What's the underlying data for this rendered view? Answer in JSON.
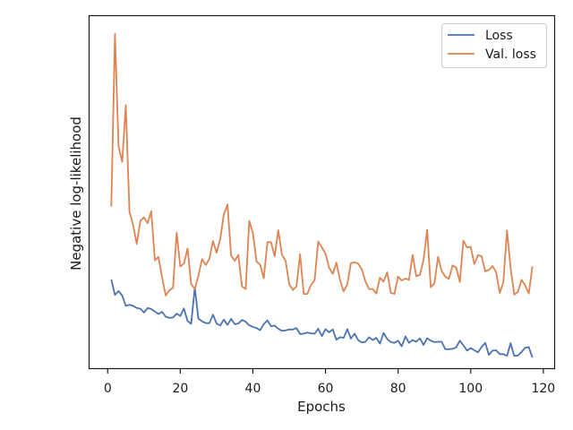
{
  "chart_data": {
    "type": "line",
    "title": "",
    "xlabel": "Epochs",
    "ylabel": "Negative log-likelihood",
    "xlim": [
      -5,
      123
    ],
    "ylim": [
      0.0,
      1.0
    ],
    "x_ticks": [
      0,
      20,
      40,
      60,
      80,
      100,
      120
    ],
    "x_tick_labels": [
      "0",
      "20",
      "40",
      "60",
      "80",
      "100",
      "120"
    ],
    "y_ticks_shown": false,
    "grid": false,
    "legend": "top-right",
    "series": [
      {
        "name": "Loss",
        "color": "#4c72b0",
        "x": [
          1,
          2,
          3,
          4,
          5,
          6,
          7,
          8,
          9,
          10,
          11,
          12,
          13,
          14,
          15,
          16,
          17,
          18,
          19,
          20,
          21,
          22,
          23,
          24,
          25,
          26,
          27,
          28,
          29,
          30,
          31,
          32,
          33,
          34,
          35,
          36,
          37,
          38,
          39,
          40,
          41,
          42,
          43,
          44,
          45,
          46,
          47,
          48,
          49,
          50,
          51,
          52,
          53,
          54,
          55,
          56,
          57,
          58,
          59,
          60,
          61,
          62,
          63,
          64,
          65,
          66,
          67,
          68,
          69,
          70,
          71,
          72,
          73,
          74,
          75,
          76,
          77,
          78,
          79,
          80,
          81,
          82,
          83,
          84,
          85,
          86,
          87,
          88,
          89,
          90,
          91,
          92,
          93,
          94,
          95,
          96,
          97,
          98,
          99,
          100,
          101,
          102,
          103,
          104,
          105,
          106,
          107,
          108,
          109,
          110,
          111,
          112,
          113,
          114,
          115,
          116,
          117
        ],
        "values": [
          0.252,
          0.208,
          0.219,
          0.206,
          0.177,
          0.18,
          0.177,
          0.171,
          0.169,
          0.158,
          0.171,
          0.168,
          0.161,
          0.154,
          0.16,
          0.146,
          0.143,
          0.144,
          0.155,
          0.148,
          0.17,
          0.134,
          0.126,
          0.229,
          0.141,
          0.133,
          0.128,
          0.128,
          0.152,
          0.127,
          0.121,
          0.138,
          0.123,
          0.14,
          0.125,
          0.127,
          0.137,
          0.132,
          0.122,
          0.117,
          0.114,
          0.108,
          0.125,
          0.136,
          0.119,
          0.121,
          0.112,
          0.106,
          0.107,
          0.11,
          0.11,
          0.114,
          0.097,
          0.098,
          0.101,
          0.099,
          0.098,
          0.112,
          0.091,
          0.111,
          0.102,
          0.11,
          0.081,
          0.088,
          0.086,
          0.111,
          0.084,
          0.098,
          0.08,
          0.073,
          0.075,
          0.088,
          0.08,
          0.086,
          0.07,
          0.1,
          0.083,
          0.074,
          0.072,
          0.078,
          0.062,
          0.09,
          0.072,
          0.08,
          0.075,
          0.085,
          0.066,
          0.085,
          0.078,
          0.074,
          0.075,
          0.075,
          0.054,
          0.054,
          0.055,
          0.059,
          0.078,
          0.065,
          0.05,
          0.057,
          0.051,
          0.045,
          0.06,
          0.072,
          0.038,
          0.05,
          0.051,
          0.04,
          0.04,
          0.035,
          0.071,
          0.035,
          0.036,
          0.046,
          0.058,
          0.06,
          0.03
        ]
      },
      {
        "name": "Val. loss",
        "color": "#dd8452",
        "x": [
          1,
          2,
          3,
          4,
          5,
          6,
          7,
          8,
          9,
          10,
          11,
          12,
          13,
          14,
          15,
          16,
          17,
          18,
          19,
          20,
          21,
          22,
          23,
          24,
          25,
          26,
          27,
          28,
          29,
          30,
          31,
          32,
          33,
          34,
          35,
          36,
          37,
          38,
          39,
          40,
          41,
          42,
          43,
          44,
          45,
          46,
          47,
          48,
          49,
          50,
          51,
          52,
          53,
          54,
          55,
          56,
          57,
          58,
          59,
          60,
          61,
          62,
          63,
          64,
          65,
          66,
          67,
          68,
          69,
          70,
          71,
          72,
          73,
          74,
          75,
          76,
          77,
          78,
          79,
          80,
          81,
          82,
          83,
          84,
          85,
          86,
          87,
          88,
          89,
          90,
          91,
          92,
          93,
          94,
          95,
          96,
          97,
          98,
          99,
          100,
          101,
          102,
          103,
          104,
          105,
          106,
          107,
          108,
          109,
          110,
          111,
          112,
          113,
          114,
          115,
          116,
          117
        ],
        "values": [
          0.459,
          0.95,
          0.63,
          0.586,
          0.747,
          0.445,
          0.406,
          0.353,
          0.419,
          0.428,
          0.412,
          0.446,
          0.306,
          0.316,
          0.257,
          0.206,
          0.221,
          0.229,
          0.385,
          0.289,
          0.297,
          0.34,
          0.239,
          0.225,
          0.263,
          0.31,
          0.293,
          0.31,
          0.361,
          0.328,
          0.367,
          0.437,
          0.465,
          0.32,
          0.305,
          0.322,
          0.232,
          0.225,
          0.418,
          0.384,
          0.303,
          0.294,
          0.255,
          0.358,
          0.358,
          0.318,
          0.392,
          0.322,
          0.305,
          0.239,
          0.222,
          0.232,
          0.324,
          0.211,
          0.211,
          0.236,
          0.25,
          0.36,
          0.343,
          0.325,
          0.285,
          0.268,
          0.3,
          0.251,
          0.218,
          0.238,
          0.298,
          0.301,
          0.297,
          0.281,
          0.246,
          0.225,
          0.225,
          0.212,
          0.257,
          0.246,
          0.272,
          0.214,
          0.211,
          0.26,
          0.249,
          0.255,
          0.251,
          0.322,
          0.261,
          0.265,
          0.307,
          0.393,
          0.23,
          0.241,
          0.316,
          0.276,
          0.26,
          0.254,
          0.292,
          0.286,
          0.245,
          0.362,
          0.343,
          0.345,
          0.296,
          0.321,
          0.318,
          0.275,
          0.279,
          0.29,
          0.273,
          0.214,
          0.244,
          0.391,
          0.285,
          0.209,
          0.217,
          0.251,
          0.235,
          0.212,
          0.289
        ]
      }
    ]
  }
}
